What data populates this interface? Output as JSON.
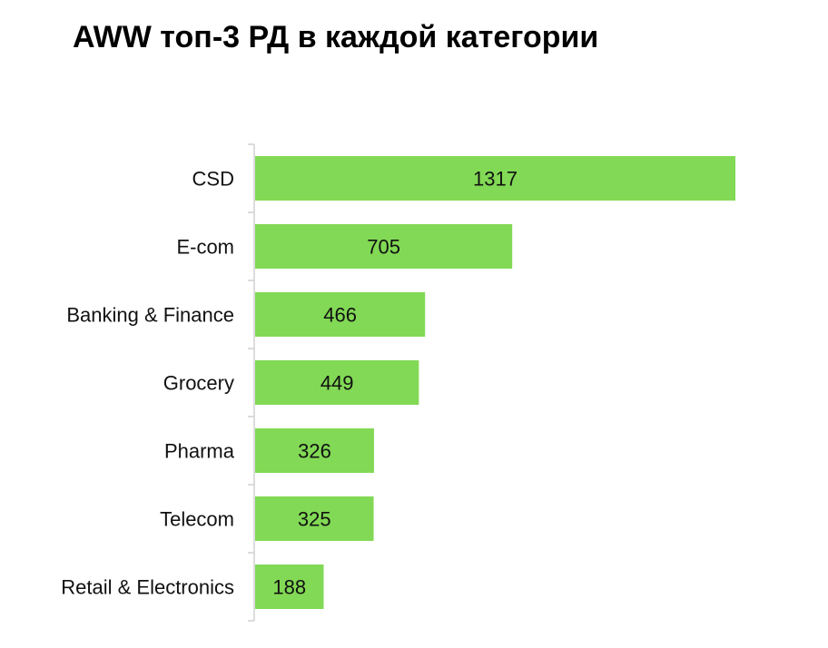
{
  "chart_data": {
    "type": "bar",
    "orientation": "horizontal",
    "title": "AWW топ-3 РД в каждой категории",
    "xlabel": "",
    "ylabel": "",
    "categories": [
      "CSD",
      "E-com",
      "Banking & Finance",
      "Grocery",
      "Pharma",
      "Telecom",
      "Retail & Electronics"
    ],
    "values": [
      1317,
      705,
      466,
      449,
      326,
      325,
      188
    ],
    "data_labels": true,
    "grid": false,
    "bar_color": "#82d955"
  }
}
